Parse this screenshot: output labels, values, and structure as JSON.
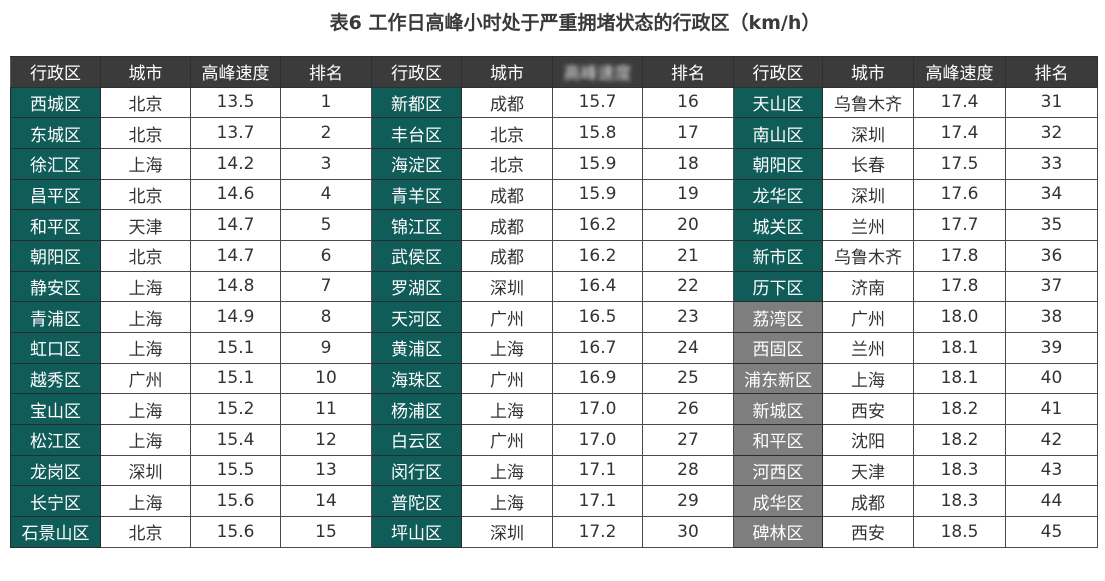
{
  "title": "表6 工作日高峰小时处于严重拥堵状态的行政区（km/h）",
  "headers": [
    "行政区",
    "城市",
    "高峰速度",
    "排名",
    "行政区",
    "城市",
    "高峰速度",
    "排名",
    "行政区",
    "城市",
    "高峰速度",
    "排名"
  ],
  "colors": {
    "header_bg": "#3b3b3b",
    "district_teal": "#0f5c59",
    "district_gray": "#7e7e7e",
    "grid_line": "#4a4a4a"
  },
  "rows": [
    [
      [
        "西城区",
        "北京",
        "13.5",
        "1"
      ],
      [
        "新都区",
        "成都",
        "15.7",
        "16"
      ],
      [
        "天山区",
        "乌鲁木齐",
        "17.4",
        "31"
      ]
    ],
    [
      [
        "东城区",
        "北京",
        "13.7",
        "2"
      ],
      [
        "丰台区",
        "北京",
        "15.8",
        "17"
      ],
      [
        "南山区",
        "深圳",
        "17.4",
        "32"
      ]
    ],
    [
      [
        "徐汇区",
        "上海",
        "14.2",
        "3"
      ],
      [
        "海淀区",
        "北京",
        "15.9",
        "18"
      ],
      [
        "朝阳区",
        "长春",
        "17.5",
        "33"
      ]
    ],
    [
      [
        "昌平区",
        "北京",
        "14.6",
        "4"
      ],
      [
        "青羊区",
        "成都",
        "15.9",
        "19"
      ],
      [
        "龙华区",
        "深圳",
        "17.6",
        "34"
      ]
    ],
    [
      [
        "和平区",
        "天津",
        "14.7",
        "5"
      ],
      [
        "锦江区",
        "成都",
        "16.2",
        "20"
      ],
      [
        "城关区",
        "兰州",
        "17.7",
        "35"
      ]
    ],
    [
      [
        "朝阳区",
        "北京",
        "14.7",
        "6"
      ],
      [
        "武侯区",
        "成都",
        "16.2",
        "21"
      ],
      [
        "新市区",
        "乌鲁木齐",
        "17.8",
        "36"
      ]
    ],
    [
      [
        "静安区",
        "上海",
        "14.8",
        "7"
      ],
      [
        "罗湖区",
        "深圳",
        "16.4",
        "22"
      ],
      [
        "历下区",
        "济南",
        "17.8",
        "37"
      ]
    ],
    [
      [
        "青浦区",
        "上海",
        "14.9",
        "8"
      ],
      [
        "天河区",
        "广州",
        "16.5",
        "23"
      ],
      [
        "荔湾区",
        "广州",
        "18.0",
        "38"
      ]
    ],
    [
      [
        "虹口区",
        "上海",
        "15.1",
        "9"
      ],
      [
        "黄浦区",
        "上海",
        "16.7",
        "24"
      ],
      [
        "西固区",
        "兰州",
        "18.1",
        "39"
      ]
    ],
    [
      [
        "越秀区",
        "广州",
        "15.1",
        "10"
      ],
      [
        "海珠区",
        "广州",
        "16.9",
        "25"
      ],
      [
        "浦东新区",
        "上海",
        "18.1",
        "40"
      ]
    ],
    [
      [
        "宝山区",
        "上海",
        "15.2",
        "11"
      ],
      [
        "杨浦区",
        "上海",
        "17.0",
        "26"
      ],
      [
        "新城区",
        "西安",
        "18.2",
        "41"
      ]
    ],
    [
      [
        "松江区",
        "上海",
        "15.4",
        "12"
      ],
      [
        "白云区",
        "广州",
        "17.0",
        "27"
      ],
      [
        "和平区",
        "沈阳",
        "18.2",
        "42"
      ]
    ],
    [
      [
        "龙岗区",
        "深圳",
        "15.5",
        "13"
      ],
      [
        "闵行区",
        "上海",
        "17.1",
        "28"
      ],
      [
        "河西区",
        "天津",
        "18.3",
        "43"
      ]
    ],
    [
      [
        "长宁区",
        "上海",
        "15.6",
        "14"
      ],
      [
        "普陀区",
        "上海",
        "17.1",
        "29"
      ],
      [
        "成华区",
        "成都",
        "18.3",
        "44"
      ]
    ],
    [
      [
        "石景山区",
        "北京",
        "15.6",
        "15"
      ],
      [
        "坪山区",
        "深圳",
        "17.2",
        "30"
      ],
      [
        "碑林区",
        "西安",
        "18.5",
        "45"
      ]
    ]
  ]
}
